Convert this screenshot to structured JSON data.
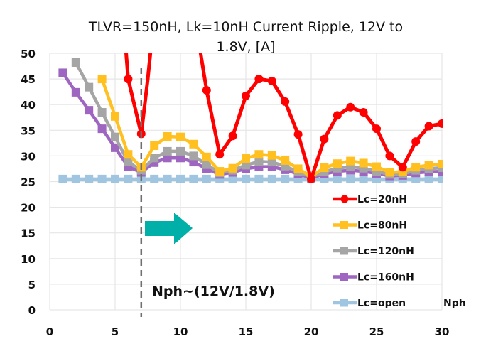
{
  "chart_data": {
    "type": "line",
    "title_lines": [
      "TLVR=150nH, Lk=10nH Current Ripple, 12V to",
      "1.8V, [A]"
    ],
    "xlabel": "Nph",
    "ylabel": "",
    "xlim": [
      0,
      30
    ],
    "ylim": [
      0,
      50
    ],
    "xticks": [
      0,
      5,
      10,
      15,
      20,
      25,
      30
    ],
    "yticks": [
      0,
      5,
      10,
      15,
      20,
      25,
      30,
      35,
      40,
      45,
      50
    ],
    "grid": true,
    "legend_position": "bottom-right",
    "x": [
      1,
      2,
      3,
      4,
      5,
      6,
      7,
      8,
      9,
      10,
      11,
      12,
      13,
      14,
      15,
      16,
      17,
      18,
      19,
      20,
      21,
      22,
      23,
      24,
      25,
      26,
      27,
      28,
      29,
      30
    ],
    "series": [
      {
        "name": "Lc=20nH",
        "color": "#ff0000",
        "marker": "circle",
        "values": [
          null,
          null,
          null,
          null,
          null,
          45,
          34.3,
          null,
          null,
          null,
          null,
          42.8,
          30.3,
          33.9,
          41.7,
          45.0,
          44.6,
          40.6,
          34.2,
          25.5,
          33.3,
          37.9,
          39.5,
          38.5,
          35.3,
          30.0,
          27.8,
          32.8,
          35.8,
          36.3
        ]
      },
      {
        "name": "Lc=80nH",
        "color": "#ffc020",
        "marker": "square",
        "values": [
          null,
          null,
          null,
          45.0,
          37.7,
          30.3,
          27.8,
          32.0,
          33.8,
          33.7,
          32.3,
          29.8,
          27.0,
          27.6,
          29.5,
          30.3,
          30.1,
          29.1,
          27.5,
          26.0,
          27.7,
          28.5,
          29.0,
          28.6,
          27.9,
          26.8,
          26.9,
          27.8,
          28.2,
          28.4
        ]
      },
      {
        "name": "Lc=120nH",
        "color": "#a5a5a5",
        "marker": "square",
        "values": [
          null,
          48.2,
          43.4,
          38.5,
          33.7,
          28.8,
          27.2,
          29.6,
          30.9,
          30.9,
          30.0,
          28.3,
          26.7,
          27.2,
          28.2,
          28.9,
          28.8,
          28.0,
          26.9,
          25.9,
          26.9,
          27.6,
          27.9,
          27.6,
          27.0,
          26.4,
          26.5,
          27.2,
          27.5,
          27.7
        ]
      },
      {
        "name": "Lc=160nH",
        "color": "#9e66c0",
        "marker": "square",
        "values": [
          46.2,
          42.4,
          38.9,
          35.3,
          31.6,
          27.9,
          26.8,
          28.7,
          29.6,
          29.6,
          28.8,
          27.5,
          26.4,
          26.8,
          27.5,
          27.9,
          27.9,
          27.3,
          26.5,
          25.7,
          26.5,
          27.0,
          27.2,
          27.0,
          26.6,
          26.1,
          26.2,
          26.7,
          26.9,
          27.0
        ]
      },
      {
        "name": "Lc=open",
        "color": "#9fc5e0",
        "marker": "square",
        "values": [
          25.5,
          25.5,
          25.5,
          25.5,
          25.5,
          25.5,
          25.5,
          25.5,
          25.5,
          25.5,
          25.5,
          25.5,
          25.5,
          25.5,
          25.5,
          25.5,
          25.5,
          25.5,
          25.5,
          25.5,
          25.5,
          25.5,
          25.5,
          25.5,
          25.5,
          25.5,
          25.5,
          25.5,
          25.5,
          25.5
        ]
      }
    ],
    "annotations": [
      {
        "type": "vline",
        "x": 7,
        "style": "dashed",
        "color": "#707070"
      },
      {
        "type": "arrow",
        "direction": "right",
        "color": "#00b0a8"
      },
      {
        "type": "text",
        "text": "Nph~(12V/1.8V)"
      }
    ],
    "red_curve_offscale_note": "Lc=20nH exceeds the 50 A axis between Nph=7 and Nph=12 and at Nph<=5"
  }
}
